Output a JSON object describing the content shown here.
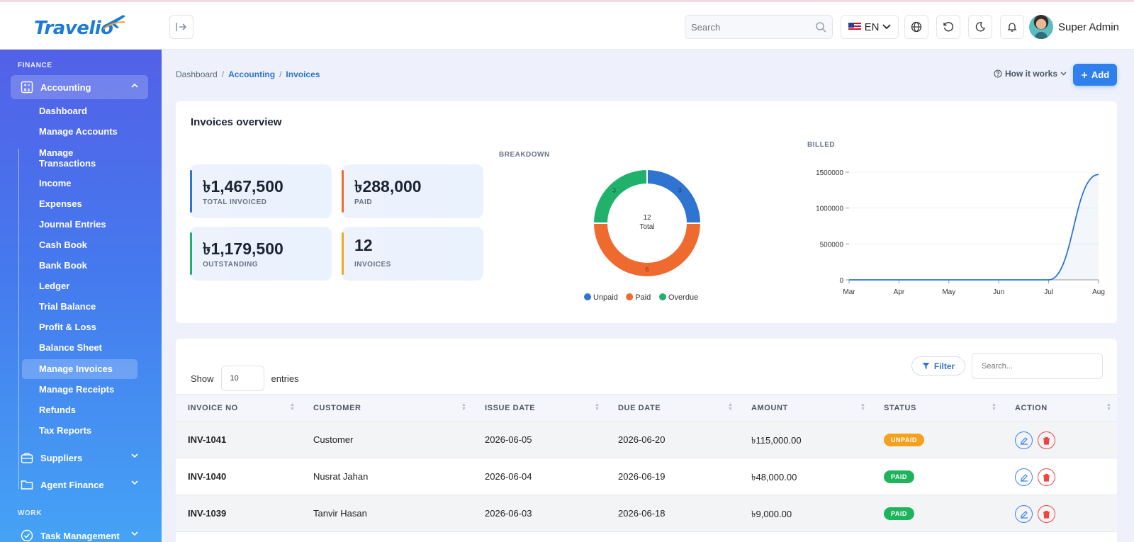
{
  "app": {
    "brand": "Travelio"
  },
  "topbar": {
    "search_placeholder": "Search",
    "lang": "EN",
    "user_name": "Super Admin"
  },
  "sidebar": {
    "section_finance": "FINANCE",
    "accounting": "Accounting",
    "sub_items": [
      "Dashboard",
      "Manage Accounts",
      "Manage Transactions",
      "Income",
      "Expenses",
      "Journal Entries",
      "Cash Book",
      "Bank Book",
      "Ledger",
      "Trial Balance",
      "Profit & Loss",
      "Balance Sheet",
      "Manage Invoices",
      "Manage Receipts",
      "Refunds",
      "Tax Reports"
    ],
    "sub_line1": "Manage",
    "sub_line2": "Transactions",
    "active_item": "Manage Invoices",
    "suppliers": "Suppliers",
    "agent_finance": "Agent Finance",
    "section_work": "WORK",
    "task_management": "Task Management"
  },
  "breadcrumb": {
    "root": "Dashboard",
    "parent": "Accounting",
    "current": "Invoices"
  },
  "actions": {
    "how_it_works": "How it works",
    "add": "Add"
  },
  "overview": {
    "title": "Invoices overview",
    "stats": [
      {
        "value": "৳1,467,500",
        "label": "TOTAL INVOICED",
        "color": "#2f74d0"
      },
      {
        "value": "৳288,000",
        "label": "PAID",
        "color": "#ef6a2f"
      },
      {
        "value": "৳1,179,500",
        "label": "OUTSTANDING",
        "color": "#20b26b"
      },
      {
        "value": "12",
        "label": "INVOICES",
        "color": "#f5a623"
      }
    ],
    "breakdown_label": "BREAKDOWN",
    "billed_label": "BILLED"
  },
  "chart_data": [
    {
      "type": "pie",
      "title": "BREAKDOWN",
      "center_value": "12",
      "center_label": "Total",
      "categories": [
        "Unpaid",
        "Paid",
        "Overdue"
      ],
      "values": [
        3,
        6,
        3
      ],
      "colors": [
        "#2f74d0",
        "#ef6a2f",
        "#20b26b"
      ],
      "legend": "bottom"
    },
    {
      "type": "area",
      "title": "BILLED",
      "categories": [
        "Mar",
        "Apr",
        "May",
        "Jun",
        "Jul",
        "Aug"
      ],
      "values": [
        0,
        0,
        0,
        0,
        0,
        1467500
      ],
      "yticks": [
        "0",
        "500000",
        "1000000",
        "1500000"
      ],
      "ylim": [
        0,
        1500000
      ],
      "color": "#2f74d0",
      "grid": true
    }
  ],
  "table": {
    "show_label": "Show",
    "entries_value": "10",
    "entries_label": "entries",
    "filter_label": "Filter",
    "search_placeholder": "Search...",
    "columns": [
      "INVOICE NO",
      "CUSTOMER",
      "ISSUE DATE",
      "DUE DATE",
      "AMOUNT",
      "STATUS",
      "ACTION"
    ],
    "rows": [
      {
        "invoice": "INV-1041",
        "customer": "Customer",
        "issue": "2026-06-05",
        "due": "2026-06-20",
        "amount": "৳115,000.00",
        "status": "UNPAID",
        "status_color": "#f5a11d"
      },
      {
        "invoice": "INV-1040",
        "customer": "Nusrat Jahan",
        "issue": "2026-06-04",
        "due": "2026-06-19",
        "amount": "৳48,000.00",
        "status": "PAID",
        "status_color": "#1fb35e"
      },
      {
        "invoice": "INV-1039",
        "customer": "Tanvir Hasan",
        "issue": "2026-06-03",
        "due": "2026-06-18",
        "amount": "৳9,000.00",
        "status": "PAID",
        "status_color": "#1fb35e"
      }
    ]
  }
}
